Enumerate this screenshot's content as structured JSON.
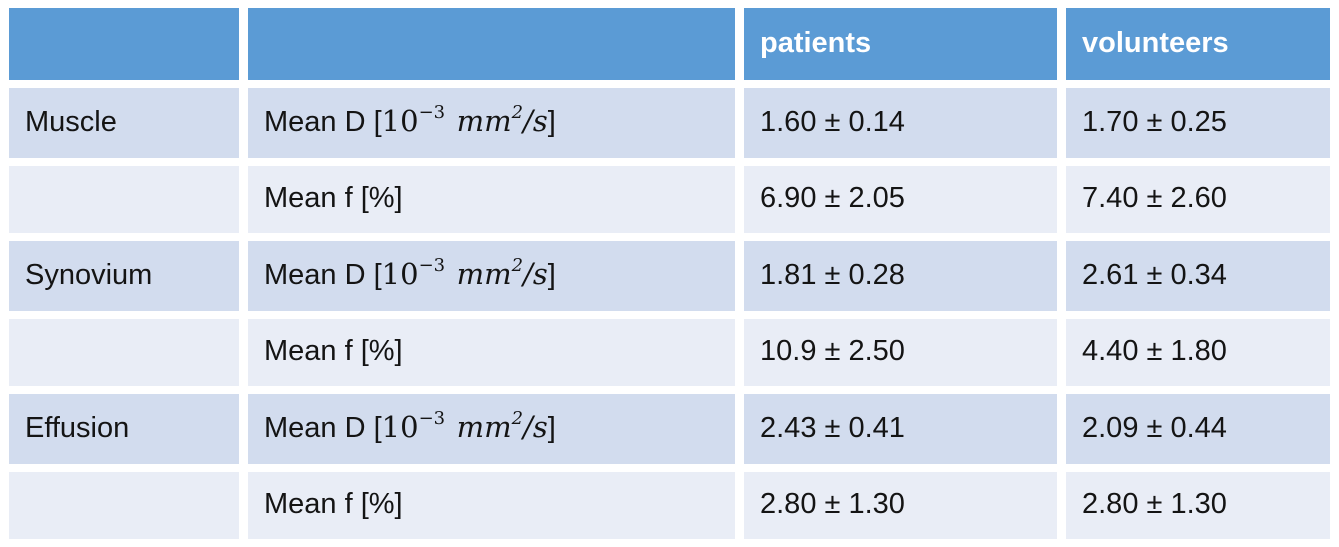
{
  "table": {
    "header": [
      "",
      "",
      "patients",
      "volunteers"
    ],
    "rows": [
      {
        "tissue": "Muscle",
        "metric": {
          "prefix": "Mean D [",
          "pow_base": "10",
          "pow_exp": "−3",
          "unit": "mm",
          "unit_exp": "2",
          "frac": "/s",
          "close": "]"
        },
        "patients": "1.60 ± 0.14",
        "volunteers": "1.70 ± 0.25"
      },
      {
        "tissue": "",
        "metric": {
          "plain": "Mean f [%]"
        },
        "patients": "6.90 ± 2.05",
        "volunteers": "7.40 ± 2.60"
      },
      {
        "tissue": "Synovium",
        "metric": {
          "prefix": "Mean D [",
          "pow_base": "10",
          "pow_exp": "−3",
          "unit": "mm",
          "unit_exp": "2",
          "frac": "/s",
          "close": "]"
        },
        "patients": "1.81 ± 0.28",
        "volunteers": "2.61 ± 0.34"
      },
      {
        "tissue": "",
        "metric": {
          "plain": "Mean f [%]"
        },
        "patients": "10.9 ± 2.50",
        "volunteers": "4.40 ± 1.80"
      },
      {
        "tissue": "Effusion",
        "metric": {
          "prefix": "Mean D [",
          "pow_base": "10",
          "pow_exp": "−3",
          "unit": "mm",
          "unit_exp": "2",
          "frac": "/s",
          "close": "]"
        },
        "patients": "2.43 ± 0.41",
        "volunteers": "2.09 ± 0.44"
      },
      {
        "tissue": "",
        "metric": {
          "plain": "Mean f [%]"
        },
        "patients": "2.80 ± 1.30",
        "volunteers": "2.80 ± 1.30"
      }
    ]
  },
  "colors": {
    "header_bg": "#5B9BD5",
    "header_text": "#FFFFFF",
    "row_band_dark": "#D2DCEE",
    "row_band_light": "#E9EDF6",
    "body_text": "#141414",
    "gutter": "#FFFFFF"
  },
  "chart_data": {
    "type": "table",
    "title": "",
    "columns": [
      "",
      "",
      "patients",
      "volunteers"
    ],
    "rows": [
      [
        "Muscle",
        "Mean D [10^-3 mm^2/s]",
        "1.60 ± 0.14",
        "1.70 ± 0.25"
      ],
      [
        "",
        "Mean f [%]",
        "6.90 ± 2.05",
        "7.40 ± 2.60"
      ],
      [
        "Synovium",
        "Mean D [10^-3 mm^2/s]",
        "1.81 ± 0.28",
        "2.61 ± 0.34"
      ],
      [
        "",
        "Mean f [%]",
        "10.9 ± 2.50",
        "4.40 ± 1.80"
      ],
      [
        "Effusion",
        "Mean D [10^-3 mm^2/s]",
        "2.43 ± 0.41",
        "2.09 ± 0.44"
      ],
      [
        "",
        "Mean f [%]",
        "2.80 ± 1.30",
        "2.80 ± 1.30"
      ]
    ]
  }
}
